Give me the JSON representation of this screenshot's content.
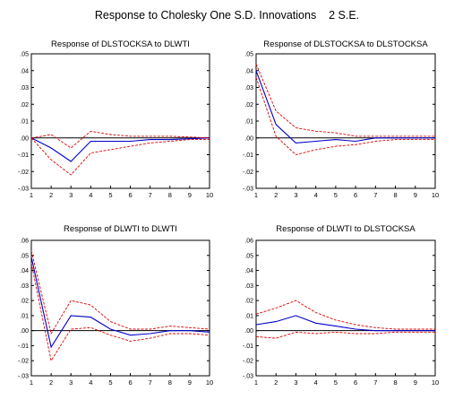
{
  "figure_title": "Response to Cholesky One S.D. Innovations    2 S.E.",
  "colors": {
    "response": "#0000cc",
    "band": "#dd0000",
    "zero": "#000000"
  },
  "chart_data": [
    {
      "type": "line",
      "title": "Response of DLSTOCKSA to DLWTI",
      "x": [
        1,
        2,
        3,
        4,
        5,
        6,
        7,
        8,
        9,
        10
      ],
      "ylim": [
        -0.03,
        0.05
      ],
      "yticks": [
        ".05",
        ".04",
        ".03",
        ".02",
        ".01",
        ".00",
        "-.01",
        "-.02",
        "-.03"
      ],
      "ytick_values": [
        0.05,
        0.04,
        0.03,
        0.02,
        0.01,
        0.0,
        -0.01,
        -0.02,
        -0.03
      ],
      "xticks": [
        "1",
        "2",
        "3",
        "4",
        "5",
        "6",
        "7",
        "8",
        "9",
        "10"
      ],
      "series": [
        {
          "role": "response",
          "values": [
            0.0,
            -0.006,
            -0.014,
            -0.002,
            -0.002,
            -0.002,
            -0.001,
            -0.001,
            -0.0005,
            0.0
          ]
        },
        {
          "role": "upper",
          "values": [
            0.0,
            0.002,
            -0.006,
            0.004,
            0.002,
            0.001,
            0.001,
            0.001,
            0.0005,
            0.0
          ]
        },
        {
          "role": "lower",
          "values": [
            0.0,
            -0.013,
            -0.022,
            -0.009,
            -0.007,
            -0.005,
            -0.003,
            -0.002,
            -0.001,
            -0.001
          ]
        }
      ]
    },
    {
      "type": "line",
      "title": "Response of DLSTOCKSA to DLSTOCKSA",
      "x": [
        1,
        2,
        3,
        4,
        5,
        6,
        7,
        8,
        9,
        10
      ],
      "ylim": [
        -0.03,
        0.05
      ],
      "yticks": [
        ".05",
        ".04",
        ".03",
        ".02",
        ".01",
        ".00",
        "-.01",
        "-.02",
        "-.03"
      ],
      "ytick_values": [
        0.05,
        0.04,
        0.03,
        0.02,
        0.01,
        0.0,
        -0.01,
        -0.02,
        -0.03
      ],
      "xticks": [
        "1",
        "2",
        "3",
        "4",
        "5",
        "6",
        "7",
        "8",
        "9",
        "10"
      ],
      "series": [
        {
          "role": "response",
          "values": [
            0.04,
            0.008,
            -0.003,
            -0.002,
            -0.001,
            -0.002,
            0.0,
            0.0,
            0.0,
            0.0
          ]
        },
        {
          "role": "upper",
          "values": [
            0.044,
            0.016,
            0.006,
            0.004,
            0.003,
            0.001,
            0.001,
            0.001,
            0.001,
            0.001
          ]
        },
        {
          "role": "lower",
          "values": [
            0.036,
            0.001,
            -0.01,
            -0.007,
            -0.005,
            -0.004,
            -0.002,
            -0.001,
            -0.001,
            -0.001
          ]
        }
      ]
    },
    {
      "type": "line",
      "title": "Response of DLWTI to DLWTI",
      "x": [
        1,
        2,
        3,
        4,
        5,
        6,
        7,
        8,
        9,
        10
      ],
      "ylim": [
        -0.03,
        0.06
      ],
      "yticks": [
        ".06",
        ".05",
        ".04",
        ".03",
        ".02",
        ".01",
        ".00",
        "-.01",
        "-.02",
        "-.03"
      ],
      "ytick_values": [
        0.06,
        0.05,
        0.04,
        0.03,
        0.02,
        0.01,
        0.0,
        -0.01,
        -0.02,
        -0.03
      ],
      "xticks": [
        "1",
        "2",
        "3",
        "4",
        "5",
        "6",
        "7",
        "8",
        "9",
        "10"
      ],
      "series": [
        {
          "role": "response",
          "values": [
            0.049,
            -0.011,
            0.01,
            0.009,
            0.001,
            -0.003,
            -0.002,
            0.0,
            0.0,
            -0.001
          ]
        },
        {
          "role": "upper",
          "values": [
            0.053,
            -0.002,
            0.02,
            0.017,
            0.006,
            0.001,
            0.001,
            0.003,
            0.002,
            0.001
          ]
        },
        {
          "role": "lower",
          "values": [
            0.045,
            -0.02,
            0.001,
            0.002,
            -0.003,
            -0.007,
            -0.005,
            -0.002,
            -0.002,
            -0.003
          ]
        }
      ]
    },
    {
      "type": "line",
      "title": "Response of DLWTI to DLSTOCKSA",
      "x": [
        1,
        2,
        3,
        4,
        5,
        6,
        7,
        8,
        9,
        10
      ],
      "ylim": [
        -0.03,
        0.06
      ],
      "yticks": [
        ".06",
        ".05",
        ".04",
        ".03",
        ".02",
        ".01",
        ".00",
        "-.01",
        "-.02",
        "-.03"
      ],
      "ytick_values": [
        0.06,
        0.05,
        0.04,
        0.03,
        0.02,
        0.01,
        0.0,
        -0.01,
        -0.02,
        -0.03
      ],
      "xticks": [
        "1",
        "2",
        "3",
        "4",
        "5",
        "6",
        "7",
        "8",
        "9",
        "10"
      ],
      "series": [
        {
          "role": "response",
          "values": [
            0.004,
            0.006,
            0.01,
            0.005,
            0.003,
            0.001,
            0.0,
            0.0,
            0.0,
            0.0
          ]
        },
        {
          "role": "upper",
          "values": [
            0.011,
            0.015,
            0.02,
            0.012,
            0.007,
            0.004,
            0.002,
            0.001,
            0.001,
            0.001
          ]
        },
        {
          "role": "lower",
          "values": [
            -0.004,
            -0.005,
            -0.001,
            -0.002,
            -0.001,
            -0.002,
            -0.002,
            -0.001,
            -0.001,
            -0.001
          ]
        }
      ]
    }
  ]
}
